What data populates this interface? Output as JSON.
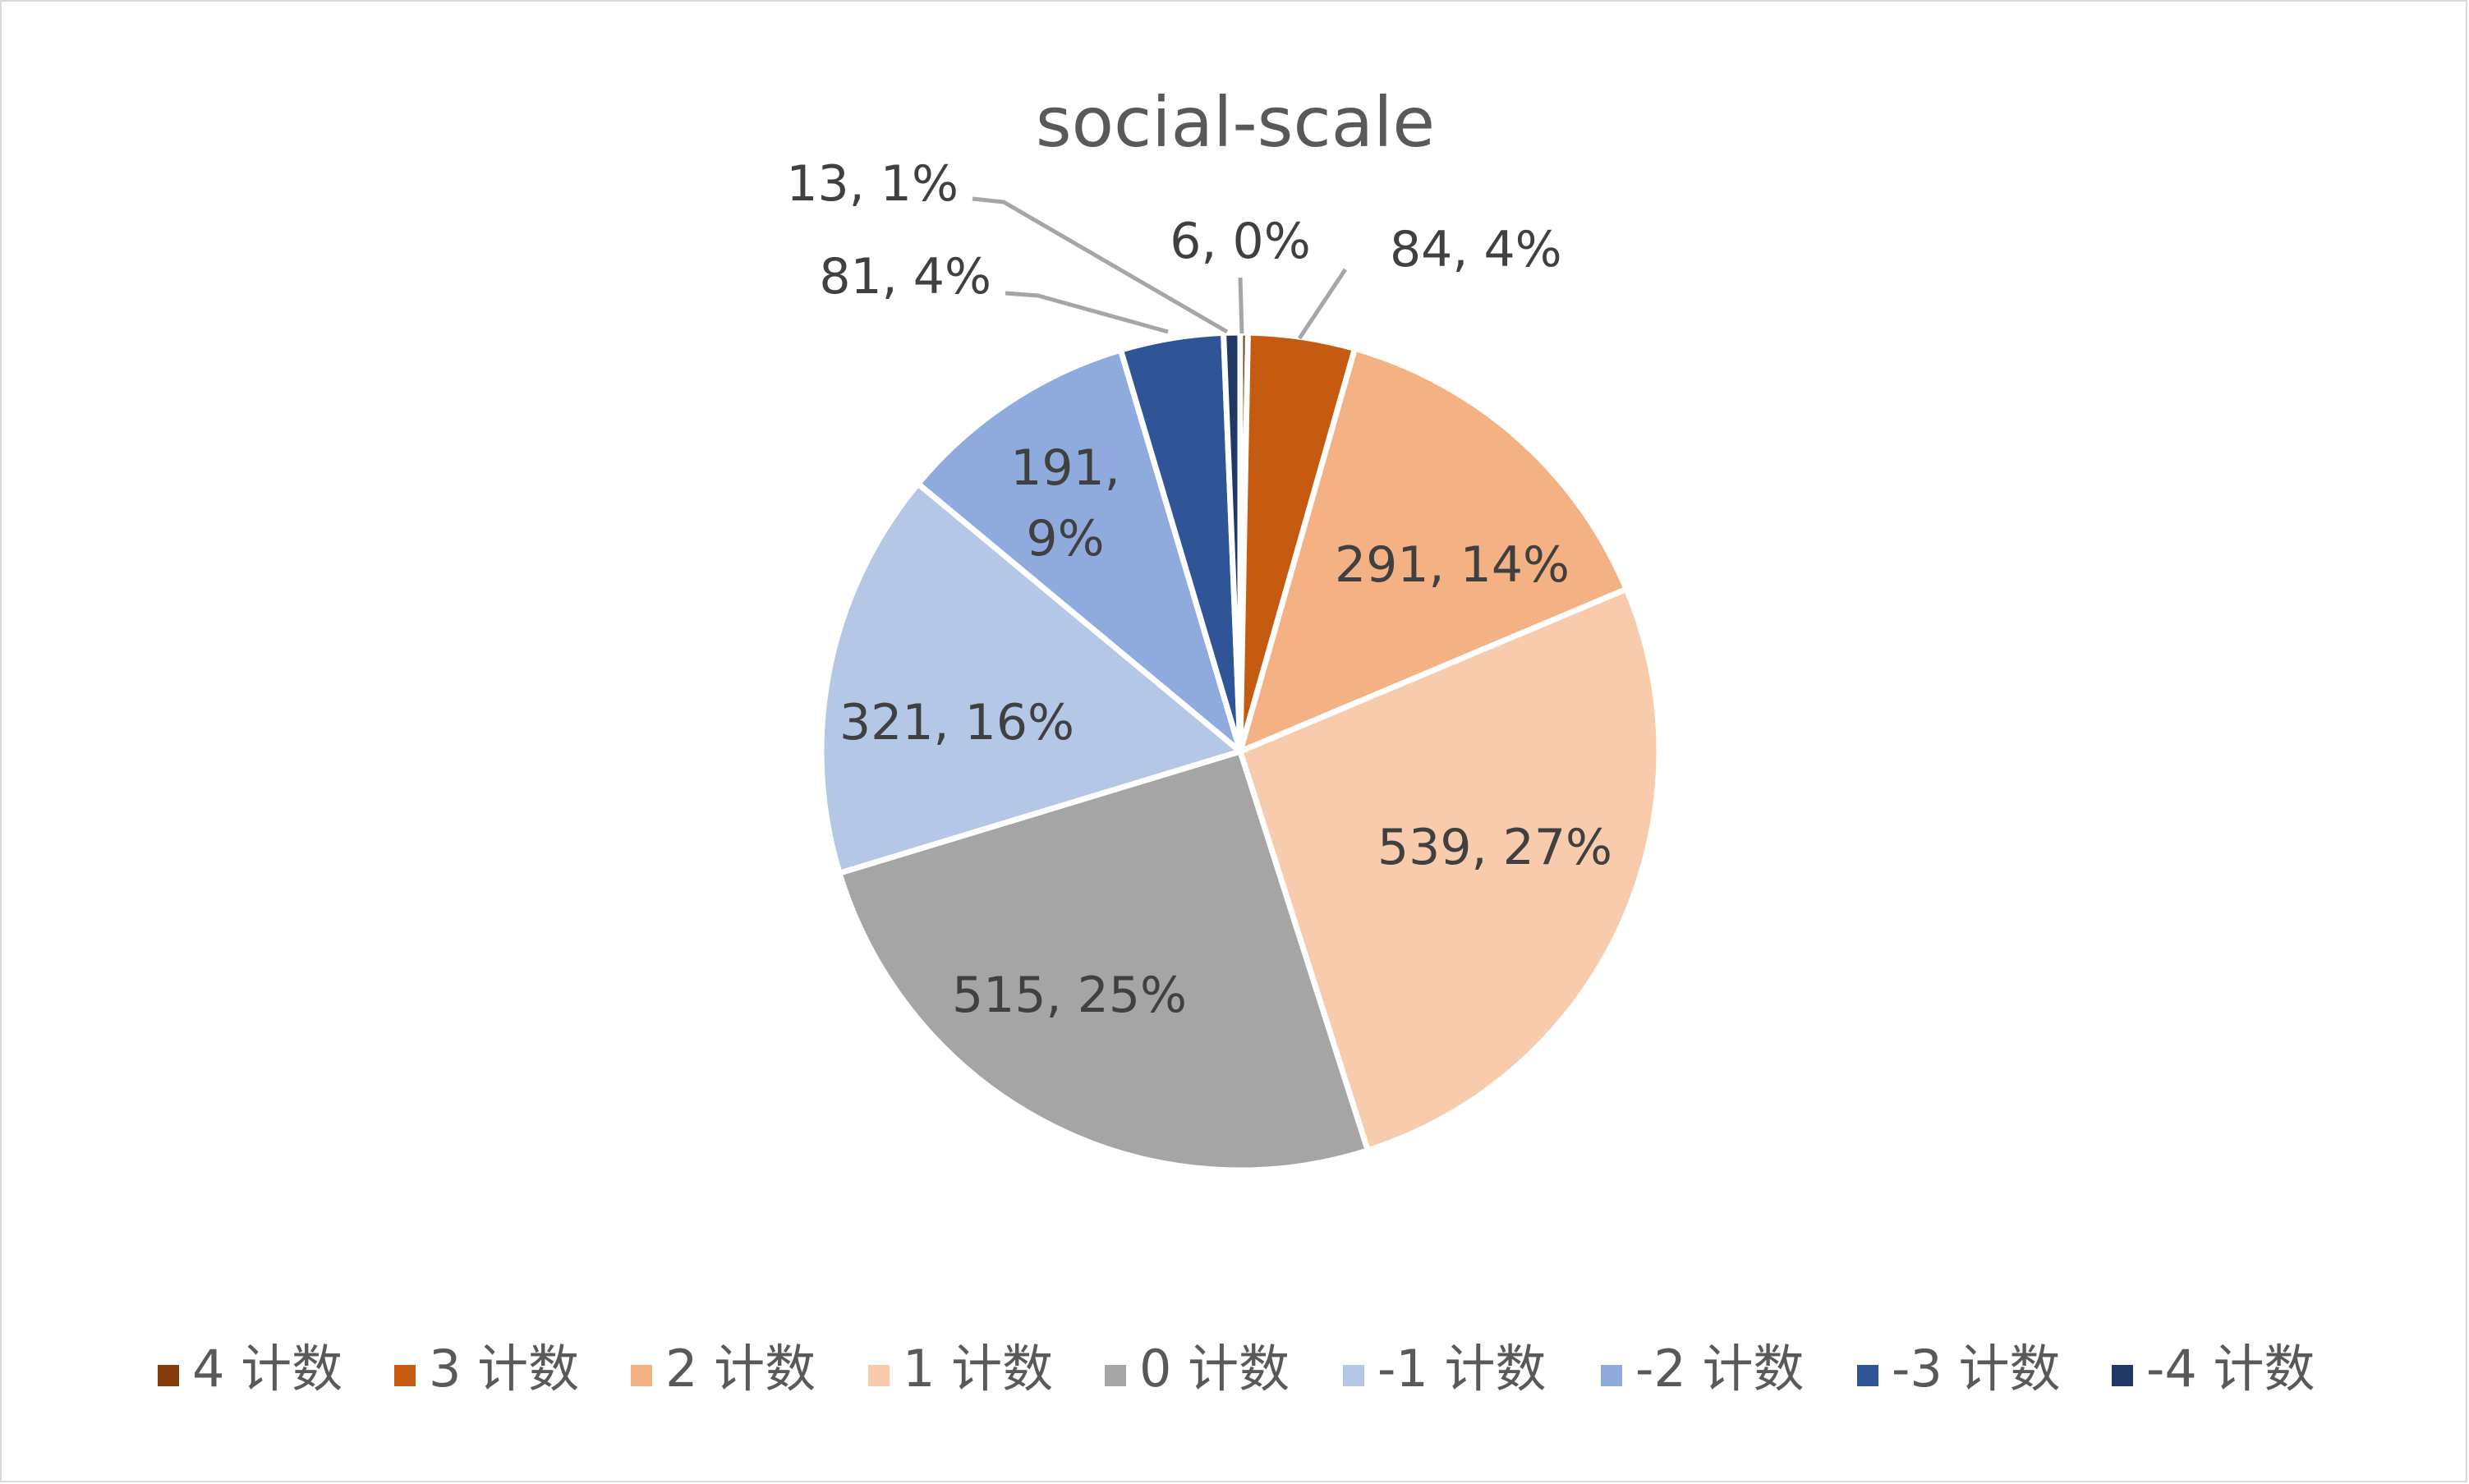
{
  "chart_data": {
    "type": "pie",
    "title": "social-scale",
    "categories": [
      "4 计数",
      "3 计数",
      "2 计数",
      "1 计数",
      "0 计数",
      "-1 计数",
      "-2 计数",
      "-3 计数",
      "-4 计数"
    ],
    "values": [
      6,
      84,
      291,
      539,
      515,
      321,
      191,
      81,
      13
    ],
    "data_labels": [
      "6, 0%",
      "84, 4%",
      "291, 14%",
      "539, 27%",
      "515, 25%",
      "321, 16%",
      "191, 9%",
      "81, 4%",
      "13, 1%"
    ],
    "colors": [
      "#843c0c",
      "#c55a11",
      "#f4b183",
      "#f8cbad",
      "#a5a5a5",
      "#b4c7e7",
      "#8faadc",
      "#2f5597",
      "#1f3864"
    ],
    "legend_position": "bottom",
    "start_angle_deg": 0,
    "direction": "clockwise"
  }
}
